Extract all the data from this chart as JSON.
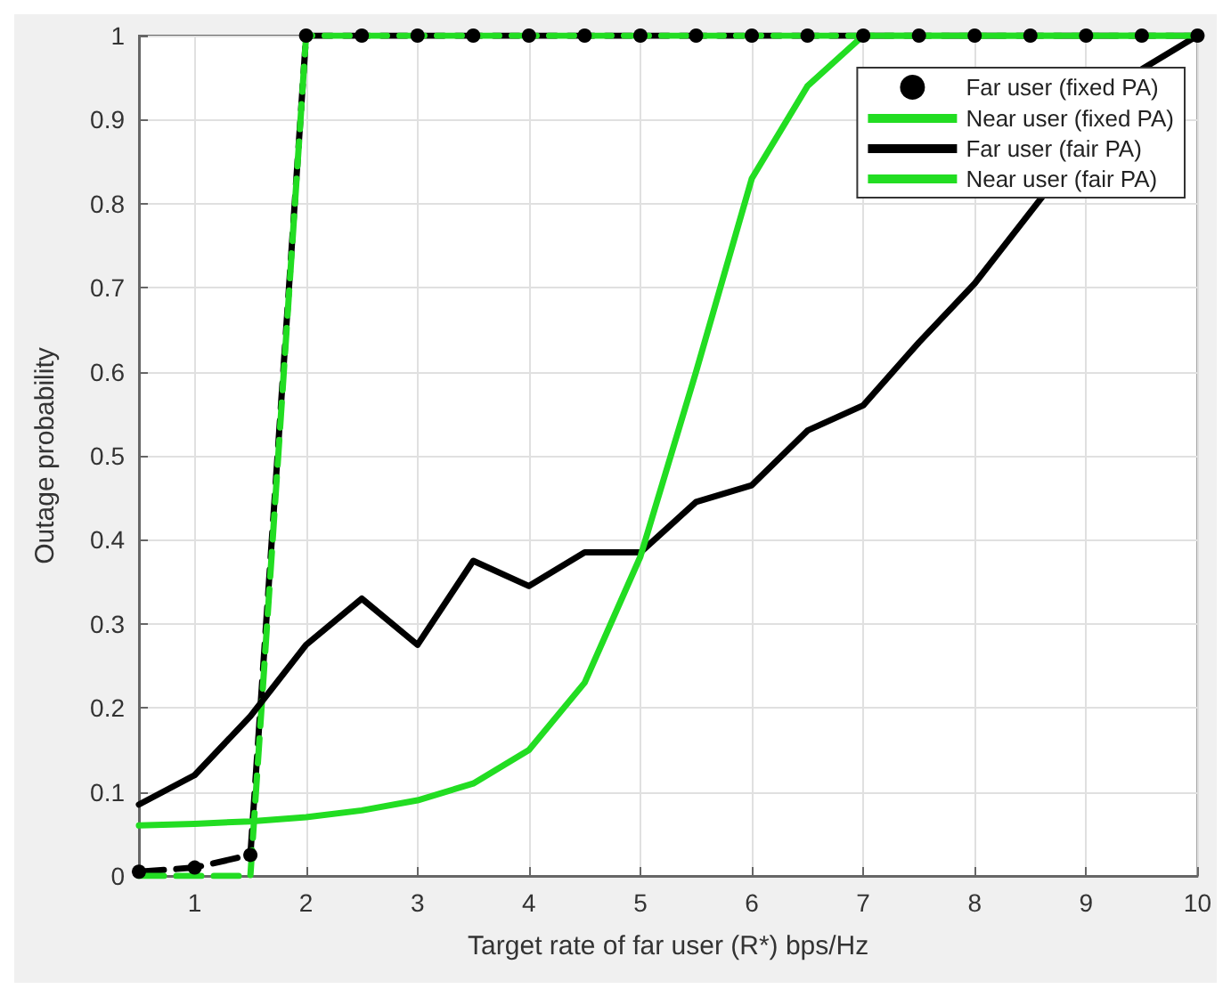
{
  "chart_data": {
    "type": "line",
    "xlabel": "Target rate of far user (R*) bps/Hz",
    "ylabel": "Outage probability",
    "x": [
      0.5,
      1,
      1.5,
      2,
      2.5,
      3,
      3.5,
      4,
      4.5,
      5,
      5.5,
      6,
      6.5,
      7,
      7.5,
      8,
      8.5,
      9,
      9.5,
      10
    ],
    "xlim": [
      0.5,
      10
    ],
    "xticks": [
      1,
      2,
      3,
      4,
      5,
      6,
      7,
      8,
      9,
      10
    ],
    "ylim": [
      0,
      1
    ],
    "yticks": [
      0,
      0.1,
      0.2,
      0.3,
      0.4,
      0.5,
      0.6,
      0.7,
      0.8,
      0.9,
      1
    ],
    "grid": true,
    "legend": "top right",
    "series": [
      {
        "name": "Far user (fixed PA)",
        "color": "#000000",
        "line_style": "dashed",
        "marker": "circle",
        "values": [
          0.005,
          0.01,
          0.025,
          1,
          1,
          1,
          1,
          1,
          1,
          1,
          1,
          1,
          1,
          1,
          1,
          1,
          1,
          1,
          1,
          1
        ]
      },
      {
        "name": "Near user (fixed PA)",
        "color": "#22dd22",
        "line_style": "dashed",
        "marker": "none",
        "values": [
          0,
          0,
          0,
          1,
          1,
          1,
          1,
          1,
          1,
          1,
          1,
          1,
          1,
          1,
          1,
          1,
          1,
          1,
          1,
          1
        ]
      },
      {
        "name": "Far user (fair PA)",
        "color": "#000000",
        "line_style": "solid",
        "marker": "none",
        "values": [
          0.085,
          0.12,
          0.19,
          0.275,
          0.33,
          0.275,
          0.375,
          0.345,
          0.385,
          0.385,
          0.445,
          0.465,
          0.53,
          0.56,
          0.635,
          0.705,
          null,
          null,
          0.96,
          1
        ]
      },
      {
        "name": "Near user (fair PA)",
        "color": "#22dd22",
        "line_style": "solid",
        "marker": "none",
        "values": [
          0.06,
          0.062,
          0.065,
          0.07,
          0.078,
          0.09,
          0.11,
          0.15,
          0.23,
          0.38,
          0.6,
          0.83,
          0.94,
          1,
          1,
          1,
          1,
          1,
          1,
          1
        ]
      }
    ]
  }
}
